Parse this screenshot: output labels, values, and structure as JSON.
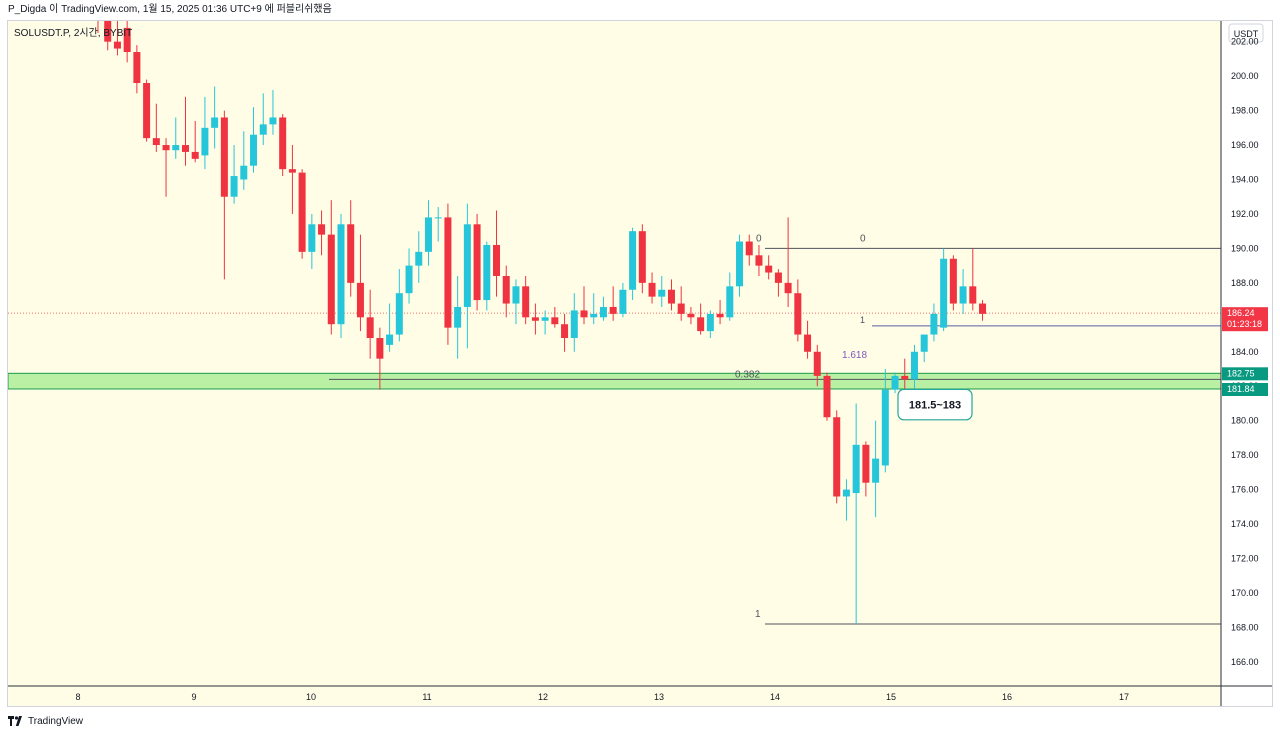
{
  "header": {
    "author": "P_Digda",
    "published_text": "이 TradingView.com, 1월 15, 2025 01:36 UTC+9 에 퍼블리쉬했음"
  },
  "footer": {
    "brand": "TradingView"
  },
  "colors": {
    "up": "#26c6da",
    "down": "#ef3340",
    "background": "#fffde6",
    "zone_fill": "#b9f0a4",
    "zone_border": "#1f9b4e",
    "price_label": "#f23645",
    "zone_label": "#089981",
    "callout_border": "#26a69a"
  },
  "chart_data": {
    "type": "candlestick",
    "symbol_label": "SOLUSDT.P, 2시간, BYBIT",
    "currency": "USDT",
    "ylim": [
      164.6,
      203.2
    ],
    "y_ticks": [
      "166.00",
      "168.00",
      "170.00",
      "172.00",
      "174.00",
      "176.00",
      "178.00",
      "180.00",
      "182.00",
      "184.00",
      "186.00",
      "188.00",
      "190.00",
      "192.00",
      "194.00",
      "196.00",
      "198.00",
      "200.00",
      "202.00"
    ],
    "x_ticks": [
      "8",
      "9",
      "10",
      "11",
      "12",
      "13",
      "14",
      "15",
      "16",
      "17"
    ],
    "last_price": "186.24",
    "countdown": "01:23:18",
    "candles": [
      {
        "o": 204.5,
        "h": 205.8,
        "l": 202.5,
        "c": 203.2
      },
      {
        "o": 203.2,
        "h": 204.2,
        "l": 201.5,
        "c": 202.0
      },
      {
        "o": 202.0,
        "h": 203.2,
        "l": 201.2,
        "c": 201.6
      },
      {
        "o": 202.8,
        "h": 203.6,
        "l": 200.8,
        "c": 201.4
      },
      {
        "o": 201.4,
        "h": 201.8,
        "l": 199.0,
        "c": 199.6
      },
      {
        "o": 199.6,
        "h": 199.8,
        "l": 196.2,
        "c": 196.4
      },
      {
        "o": 196.4,
        "h": 198.4,
        "l": 195.6,
        "c": 196.0
      },
      {
        "o": 196.0,
        "h": 196.4,
        "l": 193.0,
        "c": 195.7
      },
      {
        "o": 195.7,
        "h": 197.6,
        "l": 195.2,
        "c": 196.0
      },
      {
        "o": 196.0,
        "h": 198.8,
        "l": 194.8,
        "c": 195.6
      },
      {
        "o": 195.6,
        "h": 197.4,
        "l": 195.0,
        "c": 195.2
      },
      {
        "o": 195.4,
        "h": 198.8,
        "l": 194.6,
        "c": 197.0
      },
      {
        "o": 197.0,
        "h": 199.4,
        "l": 195.8,
        "c": 197.6
      },
      {
        "o": 197.6,
        "h": 198.0,
        "l": 188.2,
        "c": 193.0
      },
      {
        "o": 193.0,
        "h": 196.0,
        "l": 192.6,
        "c": 194.2
      },
      {
        "o": 194.0,
        "h": 196.8,
        "l": 193.4,
        "c": 194.8
      },
      {
        "o": 194.8,
        "h": 198.2,
        "l": 194.4,
        "c": 196.6
      },
      {
        "o": 196.6,
        "h": 199.0,
        "l": 196.0,
        "c": 197.2
      },
      {
        "o": 197.2,
        "h": 199.2,
        "l": 196.6,
        "c": 197.6
      },
      {
        "o": 197.6,
        "h": 197.8,
        "l": 194.2,
        "c": 194.6
      },
      {
        "o": 194.6,
        "h": 196.0,
        "l": 192.0,
        "c": 194.4
      },
      {
        "o": 194.4,
        "h": 194.6,
        "l": 189.4,
        "c": 189.8
      },
      {
        "o": 189.8,
        "h": 192.0,
        "l": 188.8,
        "c": 191.4
      },
      {
        "o": 191.4,
        "h": 192.2,
        "l": 189.6,
        "c": 190.8
      },
      {
        "o": 190.8,
        "h": 192.8,
        "l": 185.0,
        "c": 185.6
      },
      {
        "o": 185.6,
        "h": 192.0,
        "l": 184.8,
        "c": 191.4
      },
      {
        "o": 191.4,
        "h": 192.8,
        "l": 187.2,
        "c": 188.0
      },
      {
        "o": 188.0,
        "h": 190.8,
        "l": 185.2,
        "c": 186.0
      },
      {
        "o": 186.0,
        "h": 187.6,
        "l": 183.6,
        "c": 184.8
      },
      {
        "o": 184.8,
        "h": 185.4,
        "l": 181.8,
        "c": 183.6
      },
      {
        "o": 184.4,
        "h": 186.8,
        "l": 184.0,
        "c": 185.0
      },
      {
        "o": 185.0,
        "h": 188.8,
        "l": 184.6,
        "c": 187.4
      },
      {
        "o": 187.4,
        "h": 190.0,
        "l": 186.8,
        "c": 189.0
      },
      {
        "o": 189.0,
        "h": 191.0,
        "l": 188.0,
        "c": 189.8
      },
      {
        "o": 189.8,
        "h": 192.8,
        "l": 189.0,
        "c": 191.8
      },
      {
        "o": 191.8,
        "h": 192.4,
        "l": 190.4,
        "c": 191.8
      },
      {
        "o": 191.8,
        "h": 192.6,
        "l": 184.4,
        "c": 185.4
      },
      {
        "o": 185.4,
        "h": 188.4,
        "l": 183.6,
        "c": 186.6
      },
      {
        "o": 186.6,
        "h": 192.6,
        "l": 184.2,
        "c": 191.4
      },
      {
        "o": 191.4,
        "h": 192.0,
        "l": 186.4,
        "c": 187.0
      },
      {
        "o": 187.0,
        "h": 190.4,
        "l": 186.4,
        "c": 190.2
      },
      {
        "o": 190.2,
        "h": 192.2,
        "l": 187.2,
        "c": 188.4
      },
      {
        "o": 188.4,
        "h": 189.0,
        "l": 186.0,
        "c": 186.8
      },
      {
        "o": 186.8,
        "h": 188.2,
        "l": 185.6,
        "c": 187.8
      },
      {
        "o": 187.8,
        "h": 188.4,
        "l": 185.6,
        "c": 186.0
      },
      {
        "o": 186.0,
        "h": 186.8,
        "l": 185.0,
        "c": 185.8
      },
      {
        "o": 185.8,
        "h": 186.4,
        "l": 185.0,
        "c": 186.0
      },
      {
        "o": 186.0,
        "h": 186.6,
        "l": 185.4,
        "c": 185.6
      },
      {
        "o": 185.6,
        "h": 186.2,
        "l": 184.0,
        "c": 184.8
      },
      {
        "o": 184.8,
        "h": 187.4,
        "l": 184.0,
        "c": 186.4
      },
      {
        "o": 186.4,
        "h": 187.8,
        "l": 185.6,
        "c": 186.0
      },
      {
        "o": 186.0,
        "h": 187.4,
        "l": 185.6,
        "c": 186.2
      },
      {
        "o": 186.0,
        "h": 187.2,
        "l": 185.8,
        "c": 186.6
      },
      {
        "o": 186.6,
        "h": 187.8,
        "l": 185.8,
        "c": 186.2
      },
      {
        "o": 186.2,
        "h": 188.0,
        "l": 186.0,
        "c": 187.6
      },
      {
        "o": 187.6,
        "h": 191.2,
        "l": 187.0,
        "c": 191.0
      },
      {
        "o": 191.0,
        "h": 191.4,
        "l": 187.4,
        "c": 188.0
      },
      {
        "o": 188.0,
        "h": 188.6,
        "l": 186.8,
        "c": 187.2
      },
      {
        "o": 187.2,
        "h": 188.4,
        "l": 186.6,
        "c": 187.6
      },
      {
        "o": 187.6,
        "h": 188.2,
        "l": 186.4,
        "c": 186.8
      },
      {
        "o": 186.8,
        "h": 187.8,
        "l": 185.8,
        "c": 186.2
      },
      {
        "o": 186.2,
        "h": 186.6,
        "l": 185.6,
        "c": 186.0
      },
      {
        "o": 186.0,
        "h": 186.8,
        "l": 185.0,
        "c": 185.2
      },
      {
        "o": 185.2,
        "h": 186.4,
        "l": 184.8,
        "c": 186.2
      },
      {
        "o": 186.2,
        "h": 187.0,
        "l": 185.6,
        "c": 186.0
      },
      {
        "o": 186.0,
        "h": 188.6,
        "l": 185.8,
        "c": 187.8
      },
      {
        "o": 187.8,
        "h": 190.8,
        "l": 187.2,
        "c": 190.4
      },
      {
        "o": 190.4,
        "h": 190.8,
        "l": 189.0,
        "c": 189.6
      },
      {
        "o": 189.6,
        "h": 190.2,
        "l": 188.4,
        "c": 189.0
      },
      {
        "o": 189.0,
        "h": 189.6,
        "l": 188.2,
        "c": 188.6
      },
      {
        "o": 188.6,
        "h": 188.8,
        "l": 187.2,
        "c": 188.0
      },
      {
        "o": 188.0,
        "h": 191.8,
        "l": 186.6,
        "c": 187.4
      },
      {
        "o": 187.4,
        "h": 188.2,
        "l": 184.6,
        "c": 185.0
      },
      {
        "o": 185.0,
        "h": 185.8,
        "l": 183.6,
        "c": 184.0
      },
      {
        "o": 184.0,
        "h": 184.4,
        "l": 182.0,
        "c": 182.6
      },
      {
        "o": 182.6,
        "h": 182.8,
        "l": 180.0,
        "c": 180.2
      },
      {
        "o": 180.2,
        "h": 180.6,
        "l": 175.2,
        "c": 175.6
      },
      {
        "o": 175.6,
        "h": 176.6,
        "l": 174.2,
        "c": 176.0
      },
      {
        "o": 175.8,
        "h": 181.0,
        "l": 168.2,
        "c": 178.6
      },
      {
        "o": 178.6,
        "h": 178.8,
        "l": 175.6,
        "c": 176.4
      },
      {
        "o": 176.4,
        "h": 180.0,
        "l": 174.4,
        "c": 177.8
      },
      {
        "o": 177.4,
        "h": 183.0,
        "l": 177.0,
        "c": 181.8
      },
      {
        "o": 181.8,
        "h": 182.8,
        "l": 181.6,
        "c": 182.6
      },
      {
        "o": 182.6,
        "h": 183.6,
        "l": 181.8,
        "c": 182.4
      },
      {
        "o": 182.4,
        "h": 184.4,
        "l": 181.6,
        "c": 184.0
      },
      {
        "o": 184.0,
        "h": 185.0,
        "l": 183.4,
        "c": 185.0
      },
      {
        "o": 185.0,
        "h": 186.8,
        "l": 184.6,
        "c": 186.2
      },
      {
        "o": 185.4,
        "h": 190.0,
        "l": 185.2,
        "c": 189.4
      },
      {
        "o": 189.4,
        "h": 189.6,
        "l": 186.4,
        "c": 186.8
      },
      {
        "o": 186.8,
        "h": 188.8,
        "l": 186.2,
        "c": 187.8
      },
      {
        "o": 187.8,
        "h": 190.0,
        "l": 186.4,
        "c": 186.8
      },
      {
        "o": 186.8,
        "h": 187.0,
        "l": 185.8,
        "c": 186.2
      }
    ],
    "support_zone": {
      "top": 182.75,
      "bottom": 181.84,
      "top_label": "182.75",
      "bottom_label": "181.84"
    },
    "fib_levels": [
      {
        "label": "0",
        "price": 190.0,
        "label2": "0"
      },
      {
        "label": "1",
        "price": 168.2
      },
      {
        "label": "0.382",
        "price": 182.4
      },
      {
        "label": "1.618",
        "price": 183.3
      },
      {
        "label": "1",
        "price": 185.5
      }
    ],
    "callout": {
      "text": "181.5~183",
      "box_low": 180.4,
      "box_high": 181.7
    }
  }
}
